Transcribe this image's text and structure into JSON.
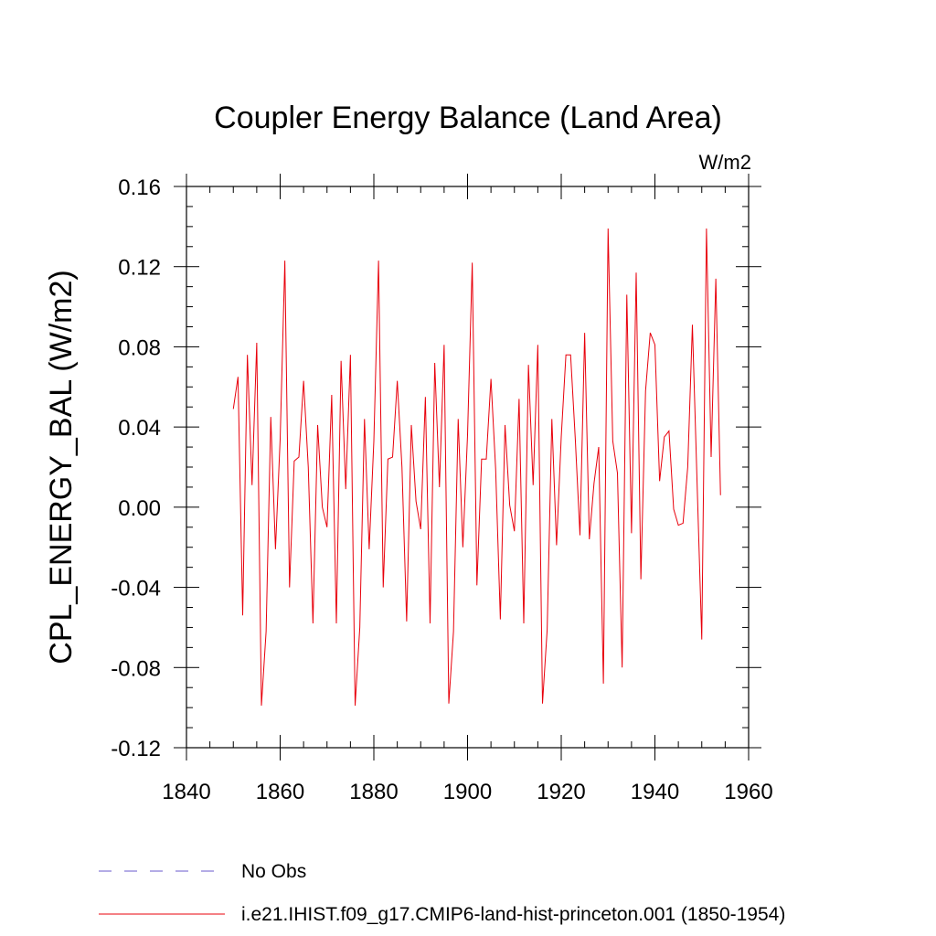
{
  "chart_data": {
    "type": "line",
    "title": "Coupler Energy Balance (Land Area)",
    "units": "W/m2",
    "ylabel": "CPL_ENERGY_BAL  (W/m2)",
    "xlabel": "",
    "xlim": [
      1840,
      1960
    ],
    "ylim": [
      -0.12,
      0.16
    ],
    "x_ticks": [
      1840,
      1860,
      1880,
      1900,
      1920,
      1940,
      1960
    ],
    "x_tick_labels": [
      "1840",
      "1860",
      "1880",
      "1900",
      "1920",
      "1940",
      "1960"
    ],
    "y_ticks": [
      0.16,
      0.12,
      0.08,
      0.04,
      0.0,
      -0.04,
      -0.08,
      -0.12
    ],
    "y_tick_labels": [
      "0.16",
      "0.12",
      "0.08",
      "0.04",
      "0.00",
      "-0.04",
      "-0.08",
      "-0.12"
    ],
    "grid": false,
    "legend_position": "bottom",
    "legend": [
      {
        "label": "No Obs",
        "style": "dashed",
        "color": "#6a5acd"
      },
      {
        "label": "i.e21.IHIST.f09_g17.CMIP6-land-hist-princeton.001 (1850-1954)",
        "style": "solid",
        "color": "#e8000b"
      }
    ],
    "series": [
      {
        "name": "i.e21.IHIST.f09_g17.CMIP6-land-hist-princeton.001 (1850-1954)",
        "color": "#e8000b",
        "x": [
          1850,
          1851,
          1852,
          1853,
          1854,
          1855,
          1856,
          1857,
          1858,
          1859,
          1860,
          1861,
          1862,
          1863,
          1864,
          1865,
          1866,
          1867,
          1868,
          1869,
          1870,
          1871,
          1872,
          1873,
          1874,
          1875,
          1876,
          1877,
          1878,
          1879,
          1880,
          1881,
          1882,
          1883,
          1884,
          1885,
          1886,
          1887,
          1888,
          1889,
          1890,
          1891,
          1892,
          1893,
          1894,
          1895,
          1896,
          1897,
          1898,
          1899,
          1900,
          1901,
          1902,
          1903,
          1904,
          1905,
          1906,
          1907,
          1908,
          1909,
          1910,
          1911,
          1912,
          1913,
          1914,
          1915,
          1916,
          1917,
          1918,
          1919,
          1920,
          1921,
          1922,
          1923,
          1924,
          1925,
          1926,
          1927,
          1928,
          1929,
          1930,
          1931,
          1932,
          1933,
          1934,
          1935,
          1936,
          1937,
          1938,
          1939,
          1940,
          1941,
          1942,
          1943,
          1944,
          1945,
          1946,
          1947,
          1948,
          1949,
          1950,
          1951,
          1952,
          1953,
          1954
        ],
        "values": [
          0.049,
          0.065,
          -0.054,
          0.076,
          0.011,
          0.082,
          -0.099,
          -0.062,
          0.045,
          -0.021,
          0.034,
          0.123,
          -0.04,
          0.023,
          0.025,
          0.063,
          0.02,
          -0.058,
          0.041,
          0.0,
          -0.01,
          0.056,
          -0.058,
          0.073,
          0.009,
          0.076,
          -0.099,
          -0.06,
          0.044,
          -0.021,
          0.033,
          0.123,
          -0.04,
          0.024,
          0.025,
          0.063,
          0.02,
          -0.057,
          0.041,
          0.003,
          -0.011,
          0.055,
          -0.058,
          0.072,
          0.01,
          0.081,
          -0.098,
          -0.062,
          0.044,
          -0.02,
          0.036,
          0.122,
          -0.039,
          0.024,
          0.024,
          0.064,
          0.019,
          -0.056,
          0.041,
          0.001,
          -0.012,
          0.054,
          -0.058,
          0.071,
          0.011,
          0.081,
          -0.098,
          -0.061,
          0.044,
          -0.019,
          0.035,
          0.076,
          0.076,
          0.034,
          -0.014,
          0.087,
          -0.016,
          0.012,
          0.03,
          -0.088,
          0.139,
          0.033,
          0.017,
          -0.08,
          0.106,
          -0.013,
          0.117,
          -0.036,
          0.058,
          0.087,
          0.081,
          0.013,
          0.035,
          0.038,
          -0.001,
          -0.009,
          -0.008,
          0.02,
          0.091,
          0.012,
          -0.066,
          0.139,
          0.025,
          0.114,
          0.006
        ]
      }
    ]
  }
}
